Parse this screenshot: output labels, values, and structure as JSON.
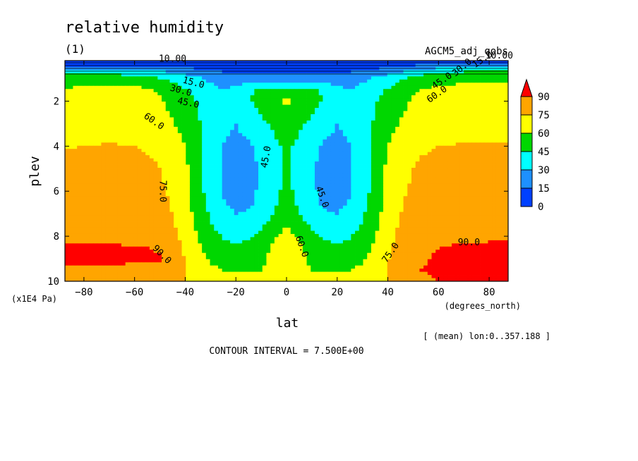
{
  "title": "relative humidity",
  "panel_label": "(1)",
  "dataset_label": "AGCM5_adj_qobs",
  "x_unit_label": "(degrees_north)",
  "y_unit_label": "(x1E4 Pa)",
  "averaging_note": "[ (mean) lon:0..357.188 ]",
  "contour_interval_text": "CONTOUR INTERVAL = 7.500E+00",
  "contour_labels": [
    "10.00",
    "15.0",
    "30.0",
    "45.0",
    "60.0",
    "75.0",
    "45.0",
    "45.0",
    "60.0",
    "75.0",
    "90.0",
    "90.0",
    "45.0",
    "30.0",
    "15.0",
    "60.0",
    "10.00"
  ],
  "colorbar": {
    "ticks": [
      "90",
      "75",
      "60",
      "45",
      "30",
      "15",
      "0"
    ],
    "colors": [
      "#ff0000",
      "#ffa500",
      "#ffff00",
      "#00d700",
      "#00ffff",
      "#1e90ff",
      "#0040ff"
    ]
  },
  "chart_data": {
    "type": "heatmap",
    "title": "relative humidity",
    "xlabel": "lat",
    "ylabel": "plev",
    "xlim": [
      -87.5,
      87.5
    ],
    "ylim": [
      10,
      0.2
    ],
    "x_ticks": [
      "-80",
      "-60",
      "-40",
      "-20",
      "0",
      "20",
      "40",
      "60",
      "80"
    ],
    "y_ticks": [
      "2",
      "4",
      "6",
      "8",
      "10"
    ],
    "levels": [
      0,
      15,
      30,
      45,
      60,
      75,
      90
    ],
    "contour_interval": 7.5,
    "lat": [
      -87.5,
      -80,
      -70,
      -60,
      -50,
      -45,
      -40,
      -35,
      -30,
      -25,
      -20,
      -15,
      -10,
      -5,
      0,
      5,
      10,
      15,
      20,
      25,
      30,
      35,
      40,
      45,
      50,
      60,
      70,
      80,
      87.5
    ],
    "plev": [
      0.2,
      0.4,
      0.7,
      1.0,
      1.5,
      2.0,
      2.5,
      3.0,
      3.5,
      4.0,
      4.5,
      5.0,
      5.5,
      6.0,
      6.5,
      7.0,
      7.5,
      8.0,
      8.5,
      9.0,
      9.5,
      10.0
    ],
    "values": [
      [
        4,
        4,
        4,
        4,
        4,
        4,
        4,
        4,
        4,
        4,
        4,
        4,
        4,
        4,
        4,
        4,
        4,
        4,
        4,
        4,
        4,
        4,
        4,
        4,
        4,
        4,
        4,
        4,
        4
      ],
      [
        14,
        14,
        13,
        13,
        12,
        11,
        10,
        8,
        7,
        6,
        6,
        5,
        5,
        5,
        5,
        5,
        5,
        5,
        6,
        6,
        7,
        8,
        10,
        12,
        14,
        17,
        19,
        20,
        20
      ],
      [
        42,
        42,
        40,
        38,
        32,
        28,
        24,
        20,
        17,
        15,
        14,
        13,
        12,
        12,
        12,
        12,
        12,
        13,
        14,
        15,
        17,
        20,
        24,
        30,
        38,
        44,
        46,
        46,
        46
      ],
      [
        50,
        52,
        54,
        52,
        46,
        42,
        37,
        32,
        27,
        24,
        22,
        21,
        20,
        20,
        20,
        20,
        20,
        21,
        22,
        24,
        27,
        32,
        38,
        44,
        50,
        54,
        55,
        55,
        55
      ],
      [
        62,
        64,
        66,
        65,
        58,
        52,
        46,
        40,
        34,
        30,
        34,
        42,
        50,
        52,
        52,
        52,
        50,
        42,
        34,
        30,
        34,
        40,
        46,
        52,
        58,
        64,
        66,
        66,
        66
      ],
      [
        66,
        67,
        69,
        68,
        62,
        56,
        50,
        44,
        37,
        30,
        34,
        44,
        50,
        55,
        64,
        55,
        50,
        44,
        34,
        30,
        37,
        44,
        50,
        56,
        62,
        67,
        69,
        69,
        69
      ],
      [
        68,
        69,
        70,
        69,
        64,
        58,
        52,
        45,
        36,
        30,
        30,
        38,
        47,
        50,
        52,
        50,
        47,
        38,
        30,
        30,
        36,
        45,
        52,
        58,
        64,
        69,
        70,
        70,
        70
      ],
      [
        69,
        70,
        71,
        70,
        66,
        61,
        55,
        47,
        36,
        32,
        30,
        34,
        42,
        47,
        50,
        47,
        42,
        34,
        30,
        32,
        36,
        47,
        55,
        61,
        66,
        70,
        71,
        71,
        71
      ],
      [
        70,
        71,
        72,
        71,
        68,
        64,
        58,
        48,
        36,
        31,
        29,
        31,
        38,
        45,
        48,
        45,
        38,
        31,
        29,
        31,
        36,
        48,
        58,
        64,
        68,
        71,
        72,
        72,
        72
      ],
      [
        74,
        75,
        76,
        75,
        71,
        67,
        60,
        49,
        36,
        30,
        27,
        28,
        34,
        43,
        47,
        43,
        34,
        28,
        27,
        30,
        36,
        49,
        60,
        67,
        71,
        75,
        76,
        76,
        76
      ],
      [
        77,
        78,
        78,
        77,
        74,
        69,
        62,
        50,
        36,
        29,
        26,
        28,
        32,
        42,
        46,
        42,
        32,
        28,
        26,
        29,
        36,
        50,
        62,
        69,
        74,
        78,
        78,
        78,
        78
      ],
      [
        78,
        79,
        79,
        78,
        75,
        71,
        63,
        50,
        36,
        28,
        25,
        27,
        31,
        41,
        46,
        41,
        31,
        27,
        25,
        28,
        36,
        50,
        63,
        71,
        75,
        79,
        79,
        79,
        79
      ],
      [
        79,
        80,
        80,
        79,
        76,
        72,
        64,
        50,
        37,
        29,
        25,
        27,
        31,
        41,
        47,
        41,
        31,
        27,
        25,
        29,
        37,
        50,
        64,
        72,
        76,
        80,
        80,
        80,
        80
      ],
      [
        79,
        80,
        80,
        80,
        77,
        73,
        65,
        51,
        38,
        29,
        26,
        27,
        32,
        42,
        48,
        42,
        32,
        27,
        26,
        29,
        38,
        51,
        65,
        73,
        77,
        80,
        80,
        80,
        80
      ],
      [
        80,
        81,
        81,
        80,
        78,
        74,
        66,
        52,
        40,
        31,
        27,
        28,
        33,
        43,
        50,
        43,
        33,
        28,
        27,
        31,
        40,
        52,
        66,
        74,
        78,
        81,
        81,
        81,
        81
      ],
      [
        81,
        81,
        81,
        81,
        79,
        75,
        67,
        54,
        43,
        34,
        30,
        31,
        36,
        46,
        54,
        46,
        36,
        31,
        30,
        34,
        43,
        54,
        67,
        75,
        79,
        81,
        81,
        81,
        81
      ],
      [
        83,
        83,
        83,
        82,
        80,
        76,
        69,
        57,
        46,
        39,
        35,
        36,
        42,
        52,
        61,
        52,
        42,
        36,
        35,
        39,
        46,
        57,
        69,
        76,
        80,
        82,
        83,
        83,
        83
      ],
      [
        85,
        85,
        85,
        84,
        82,
        78,
        71,
        60,
        50,
        44,
        40,
        42,
        50,
        58,
        64,
        58,
        50,
        42,
        40,
        44,
        50,
        60,
        71,
        78,
        80,
        84,
        86,
        87,
        87
      ],
      [
        93,
        93,
        92,
        91,
        89,
        83,
        73,
        63,
        54,
        49,
        47,
        50,
        57,
        62,
        66,
        62,
        57,
        50,
        47,
        49,
        54,
        63,
        73,
        79,
        83,
        90,
        93,
        93,
        93
      ],
      [
        93,
        93,
        93,
        92,
        91,
        86,
        74,
        65,
        58,
        53,
        51,
        53,
        58,
        62,
        65,
        62,
        58,
        53,
        51,
        53,
        58,
        65,
        74,
        81,
        86,
        92,
        93,
        93,
        93
      ],
      [
        88,
        88,
        88,
        87,
        86,
        83,
        76,
        69,
        63,
        60,
        58,
        58,
        60,
        62,
        63,
        62,
        60,
        58,
        58,
        60,
        63,
        69,
        76,
        82,
        89,
        93,
        93,
        93,
        93
      ],
      [
        80,
        80,
        80,
        80,
        79,
        78,
        75,
        71,
        68,
        66,
        65,
        65,
        66,
        66,
        66,
        66,
        66,
        65,
        65,
        66,
        68,
        71,
        75,
        79,
        85,
        90,
        91,
        91,
        91
      ]
    ]
  }
}
